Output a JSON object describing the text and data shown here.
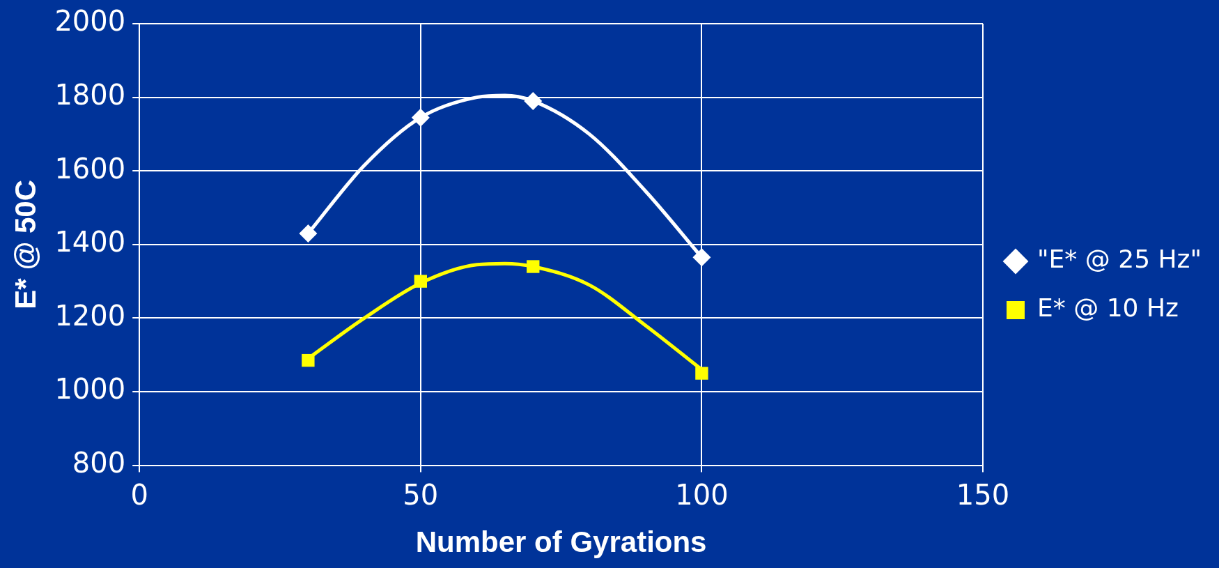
{
  "chart_data": {
    "type": "scatter",
    "xlabel": "Number of Gyrations",
    "ylabel": "E* @ 50C",
    "xlim": [
      0,
      150
    ],
    "xticks": [
      0,
      50,
      100,
      150
    ],
    "ylim": [
      800,
      2000
    ],
    "yticks": [
      800,
      1000,
      1200,
      1400,
      1600,
      1800,
      2000
    ],
    "grid": true,
    "legend": "right",
    "series": [
      {
        "name": "\"E* @ 25 Hz\"",
        "color": "#ffffff",
        "marker": "diamond",
        "x": [
          30,
          50,
          70,
          100
        ],
        "values": [
          1430,
          1745,
          1790,
          1365
        ]
      },
      {
        "name": "E* @ 10 Hz",
        "color": "#ffff00",
        "marker": "square",
        "x": [
          30,
          50,
          70,
          100
        ],
        "values": [
          1085,
          1300,
          1340,
          1050
        ]
      },
      {
        "type": "line",
        "color": "#ffffff",
        "marker": "none",
        "x": [
          30,
          40,
          50,
          60,
          65,
          70,
          80,
          90,
          100
        ],
        "values": [
          1430,
          1615,
          1745,
          1800,
          1805,
          1790,
          1700,
          1545,
          1365
        ]
      },
      {
        "type": "line",
        "color": "#ffff00",
        "marker": "none",
        "x": [
          30,
          40,
          50,
          60,
          65,
          70,
          80,
          90,
          100
        ],
        "values": [
          1090,
          1200,
          1295,
          1345,
          1348,
          1340,
          1290,
          1180,
          1060
        ]
      }
    ]
  }
}
